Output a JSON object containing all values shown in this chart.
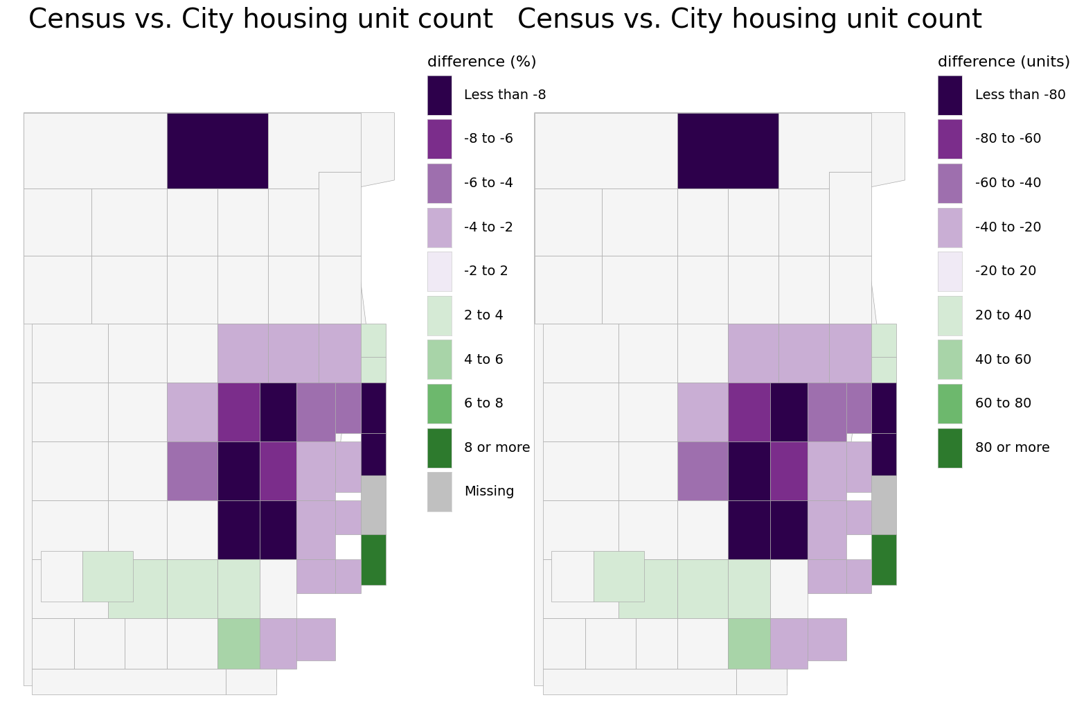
{
  "title1": "Census vs. City housing unit count",
  "title2": "Census vs. City housing unit count",
  "legend1_title": "difference (%)",
  "legend2_title": "difference (units)",
  "legend1_labels": [
    "Less than -8",
    "-8 to -6",
    "-6 to -4",
    "-4 to -2",
    "-2 to 2",
    "2 to 4",
    "4 to 6",
    "6 to 8",
    "8 or more",
    "Missing"
  ],
  "legend2_labels": [
    "Less than -80",
    "-80 to -60",
    "-60 to -40",
    "-40 to -20",
    "-20 to 20",
    "20 to 40",
    "40 to 60",
    "60 to 80",
    "80 or more"
  ],
  "colors_pct": [
    "#2d004b",
    "#7b2d8b",
    "#9e6fae",
    "#c9aed4",
    "#f0eaf5",
    "#d5ead5",
    "#a8d4a8",
    "#6db86d",
    "#2d7a2d",
    "#c0c0c0"
  ],
  "colors_units": [
    "#2d004b",
    "#7b2d8b",
    "#9e6fae",
    "#c9aed4",
    "#f0eaf5",
    "#d5ead5",
    "#a8d4a8",
    "#6db86d",
    "#2d7a2d"
  ],
  "color_border": "#aaaaaa",
  "color_bg_poly": "#f5f5f5",
  "bg_color": "#ffffff",
  "title_fontsize": 28,
  "legend_title_fontsize": 16,
  "legend_label_fontsize": 14
}
